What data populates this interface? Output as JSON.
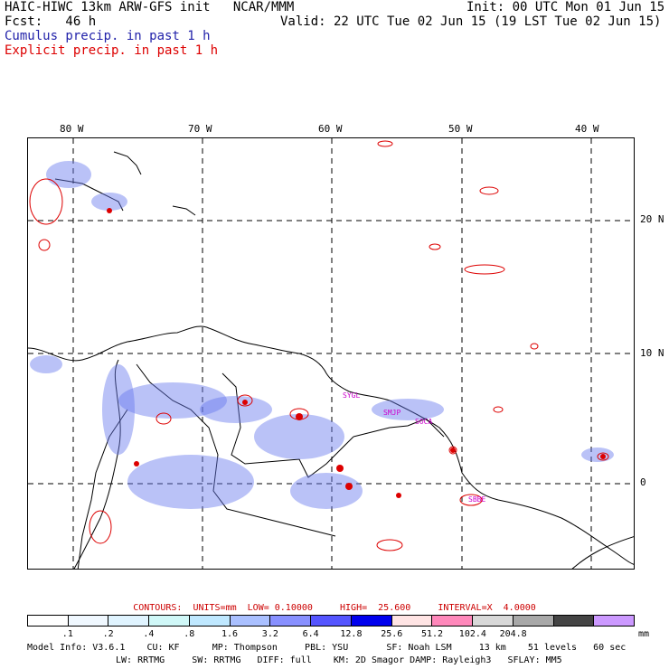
{
  "header": {
    "title": "HAIC-HIWC 13km ARW-GFS init   NCAR/MMM",
    "init": "Init: 00 UTC Mon 01 Jun 15",
    "fcst": "Fcst:   46 h",
    "valid": "Valid: 22 UTC Tue 02 Jun 15 (19 LST Tue 02 Jun 15)",
    "cumulus": "Cumulus precip. in past 1 h",
    "explicit": "Explicit precip. in past 1 h"
  },
  "map": {
    "lon_ticks": [
      "80 W",
      "70 W",
      "60 W",
      "50 W",
      "40 W"
    ],
    "lat_ticks": [
      "20 N",
      "10 N",
      "0"
    ],
    "station_labels": [
      "SYGL",
      "SMJP",
      "SOCA",
      "SBBE"
    ],
    "colors": {
      "cumulus": "#3344cc",
      "explicit": "#dd0000",
      "coast": "#000000",
      "grid": "#000000"
    }
  },
  "contours": {
    "units": "CONTOURS:  UNITS=mm  LOW= 0.10000",
    "high": "HIGH=  25.600",
    "interval": "INTERVAL=X  4.0000"
  },
  "colorbar": {
    "colors": [
      "#ffffff",
      "#f0f8ff",
      "#e0f4ff",
      "#d0f8f8",
      "#bfe8ff",
      "#aac0ff",
      "#8890ff",
      "#5555ff",
      "#0000ee",
      "#ffe4e4",
      "#ff88bb",
      "#d8d8d8",
      "#a8a8a8",
      "#444444",
      "#cc99ff"
    ],
    "labels": [
      ".1",
      ".2",
      ".4",
      ".8",
      "1.6",
      "3.2",
      "6.4",
      "12.8",
      "25.6",
      "51.2",
      "102.4",
      "204.8"
    ],
    "unit": "mm"
  },
  "model_info": {
    "line1": "Model Info: V3.6.1    CU: KF      MP: Thompson     PBL: YSU       SF: Noah LSM     13 km    51 levels   60 sec",
    "line2": "LW: RRTMG     SW: RRTMG   DIFF: full    KM: 2D Smagor DAMP: Rayleigh3   SFLAY: MM5"
  }
}
